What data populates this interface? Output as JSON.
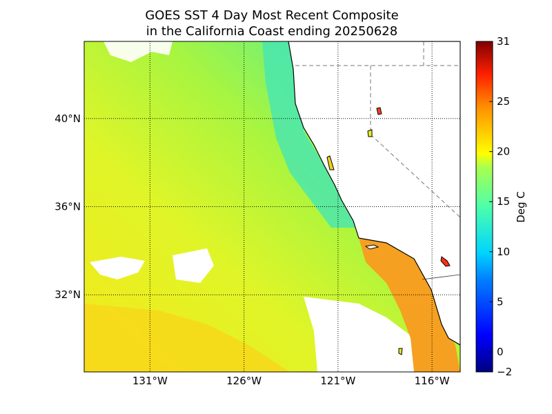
{
  "title_line1": "GOES SST 4 Day Most Recent Composite",
  "title_line2": "in the California Coast ending 20250628",
  "map": {
    "lon_range": [
      -134.5,
      -114.5
    ],
    "lat_range": [
      28.5,
      43.5
    ],
    "lat_ticks": [
      {
        "value": 40,
        "label": "40°N"
      },
      {
        "value": 36,
        "label": "36°N"
      },
      {
        "value": 32,
        "label": "32°N"
      }
    ],
    "lon_ticks": [
      {
        "value": -131,
        "label": "131°W"
      },
      {
        "value": -126,
        "label": "126°W"
      },
      {
        "value": -121,
        "label": "121°W"
      },
      {
        "value": -116,
        "label": "116°W"
      }
    ]
  },
  "colorbar": {
    "label": "Deg C",
    "range": [
      -2,
      31
    ],
    "ticks": [
      {
        "value": 31,
        "label": "31"
      },
      {
        "value": 25,
        "label": "25"
      },
      {
        "value": 20,
        "label": "20"
      },
      {
        "value": 15,
        "label": "15"
      },
      {
        "value": 10,
        "label": "10"
      },
      {
        "value": 5,
        "label": "5"
      },
      {
        "value": 0,
        "label": "0"
      },
      {
        "value": -2,
        "label": "−2"
      }
    ]
  },
  "colors": {
    "land": "#ffffff",
    "ocean_warm": "#f2f01c",
    "ocean_mid": "#b9f53a",
    "ocean_cool": "#5ef08a",
    "ocean_cold": "#2de8c8",
    "socal_warm": "#f5a020"
  }
}
